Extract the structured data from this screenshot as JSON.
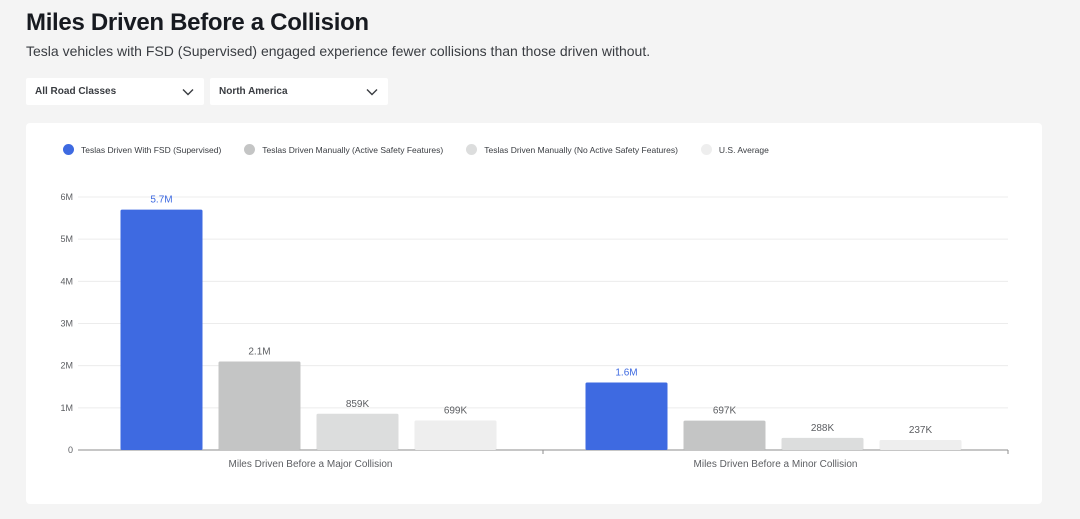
{
  "header": {
    "title": "Miles Driven Before a Collision",
    "subtitle": "Tesla vehicles with FSD (Supervised) engaged experience fewer collisions than those driven without."
  },
  "filters": {
    "road_class": "All Road Classes",
    "region": "North America"
  },
  "icons": {
    "dropdown": "chevron-down-icon"
  },
  "colors": {
    "fsd": "#3e6ae1",
    "active_safety": "#c4c5c5",
    "no_active_safety": "#dcdddd",
    "us_average": "#eeeeee",
    "fsd_label": "#3e6ae1"
  },
  "chart_data": {
    "type": "bar",
    "title": "Miles Driven Before a Collision",
    "categories": [
      "Miles Driven Before a Major Collision",
      "Miles Driven Before a Minor Collision"
    ],
    "series": [
      {
        "name": "Teslas Driven With FSD (Supervised)",
        "values": [
          5700000,
          1600000
        ],
        "labels": [
          "5.7M",
          "1.6M"
        ],
        "color": "#3e6ae1"
      },
      {
        "name": "Teslas Driven Manually (Active Safety Features)",
        "values": [
          2100000,
          697000
        ],
        "labels": [
          "2.1M",
          "697K"
        ],
        "color": "#c4c5c5"
      },
      {
        "name": "Teslas Driven Manually (No Active Safety Features)",
        "values": [
          859000,
          288000
        ],
        "labels": [
          "859K",
          "288K"
        ],
        "color": "#dcdddd"
      },
      {
        "name": "U.S. Average",
        "values": [
          699000,
          237000
        ],
        "labels": [
          "699K",
          "237K"
        ],
        "color": "#eeeeee"
      }
    ],
    "ylim": [
      0,
      6000000
    ],
    "yticks": [
      0,
      1000000,
      2000000,
      3000000,
      4000000,
      5000000,
      6000000
    ],
    "ytick_labels": [
      "0",
      "1M",
      "2M",
      "3M",
      "4M",
      "5M",
      "6M"
    ],
    "grid": true,
    "legend": "top-left"
  }
}
